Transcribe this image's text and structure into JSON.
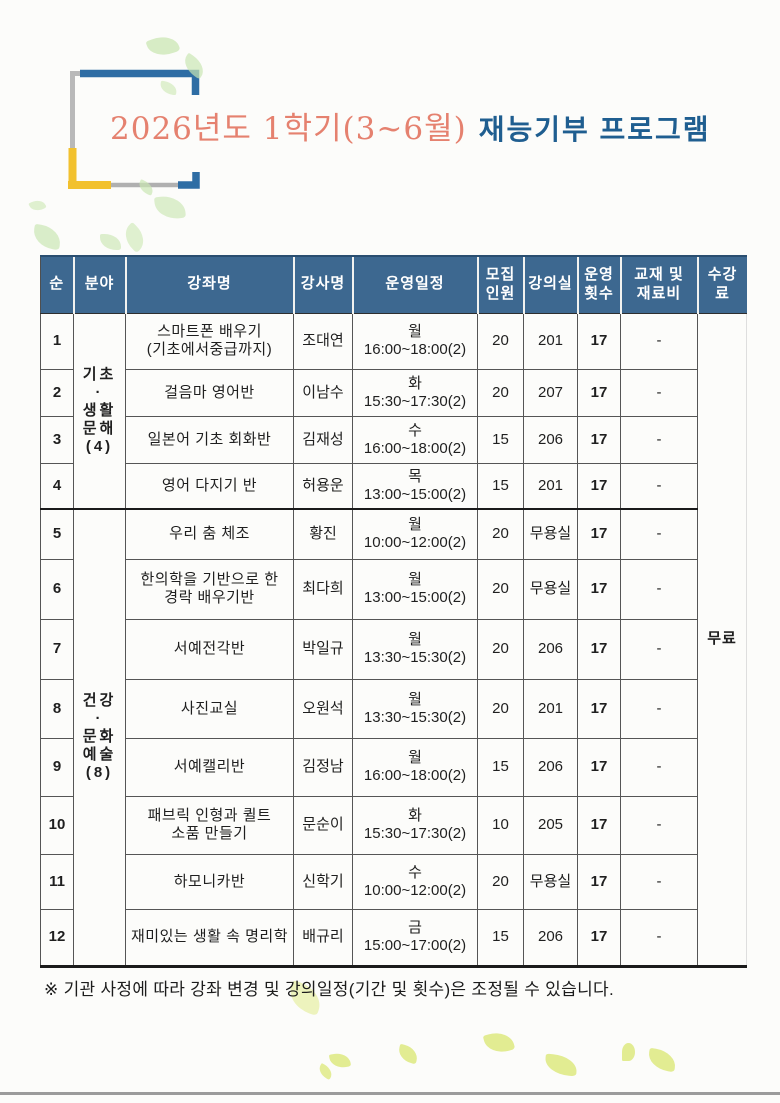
{
  "title": {
    "semester": "2026년도 1학기(3~6월)",
    "program": "재능기부 프로그램"
  },
  "table": {
    "headers": {
      "no": "순",
      "field": "분야",
      "course": "강좌명",
      "instructor": "강사명",
      "schedule": "운영일정",
      "capacity": "모집\n인원",
      "room": "강의실",
      "sessions": "운영\n횟수",
      "materials": "교재 및\n재료비",
      "fee": "수강\n료"
    },
    "field_groups": [
      {
        "label": "기초\n·\n생활\n문해\n(4)",
        "rows": 4
      },
      {
        "label": "건강\n·\n문화\n예술\n(8)",
        "rows": 8
      }
    ],
    "fee_value": "무료",
    "rows": [
      {
        "no": "1",
        "course": "스마트폰 배우기\n(기초에서중급까지)",
        "instructor": "조대연",
        "schedule": "월\n16:00~18:00(2)",
        "capacity": "20",
        "room": "201",
        "sessions": "17",
        "materials": "-"
      },
      {
        "no": "2",
        "course": "걸음마 영어반",
        "instructor": "이남수",
        "schedule": "화\n15:30~17:30(2)",
        "capacity": "20",
        "room": "207",
        "sessions": "17",
        "materials": "-"
      },
      {
        "no": "3",
        "course": "일본어 기초 회화반",
        "instructor": "김재성",
        "schedule": "수\n16:00~18:00(2)",
        "capacity": "15",
        "room": "206",
        "sessions": "17",
        "materials": "-"
      },
      {
        "no": "4",
        "course": "영어 다지기 반",
        "instructor": "허용운",
        "schedule": "목\n13:00~15:00(2)",
        "capacity": "15",
        "room": "201",
        "sessions": "17",
        "materials": "-"
      },
      {
        "no": "5",
        "course": "우리 춤 체조",
        "instructor": "황진",
        "schedule": "월\n10:00~12:00(2)",
        "capacity": "20",
        "room": "무용실",
        "sessions": "17",
        "materials": "-"
      },
      {
        "no": "6",
        "course": "한의학을 기반으로 한\n경락 배우기반",
        "instructor": "최다희",
        "schedule": "월\n13:00~15:00(2)",
        "capacity": "20",
        "room": "무용실",
        "sessions": "17",
        "materials": "-"
      },
      {
        "no": "7",
        "course": "서예전각반",
        "instructor": "박일규",
        "schedule": "월\n13:30~15:30(2)",
        "capacity": "20",
        "room": "206",
        "sessions": "17",
        "materials": "-"
      },
      {
        "no": "8",
        "course": "사진교실",
        "instructor": "오원석",
        "schedule": "월\n13:30~15:30(2)",
        "capacity": "20",
        "room": "201",
        "sessions": "17",
        "materials": "-"
      },
      {
        "no": "9",
        "course": "서예캘리반",
        "instructor": "김정남",
        "schedule": "월\n16:00~18:00(2)",
        "capacity": "15",
        "room": "206",
        "sessions": "17",
        "materials": "-"
      },
      {
        "no": "10",
        "course": "패브릭 인형과 퀼트\n소품 만들기",
        "instructor": "문순이",
        "schedule": "화\n15:30~17:30(2)",
        "capacity": "10",
        "room": "205",
        "sessions": "17",
        "materials": "-"
      },
      {
        "no": "11",
        "course": "하모니카반",
        "instructor": "신학기",
        "schedule": "수\n10:00~12:00(2)",
        "capacity": "20",
        "room": "무용실",
        "sessions": "17",
        "materials": "-"
      },
      {
        "no": "12",
        "course": "재미있는 생활 속 명리학",
        "instructor": "배규리",
        "schedule": "금\n15:00~17:00(2)",
        "capacity": "15",
        "room": "206",
        "sessions": "17",
        "materials": "-"
      }
    ]
  },
  "footnote": "※ 기관 사정에 따라 강좌 변경 및 강의일정(기간 및 횟수)은 조정될 수 있습니다.",
  "palette": {
    "header_bg": "#3d6890",
    "title_accent": "#e5816f",
    "title_blue": "#1f5e90",
    "leaf_green": "#cbe7b3",
    "leaf_yellow_green": "#dde97f",
    "frame_blue": "#2e6da4",
    "frame_yellow": "#f2c12e",
    "frame_gray": "#b9b9b9"
  }
}
